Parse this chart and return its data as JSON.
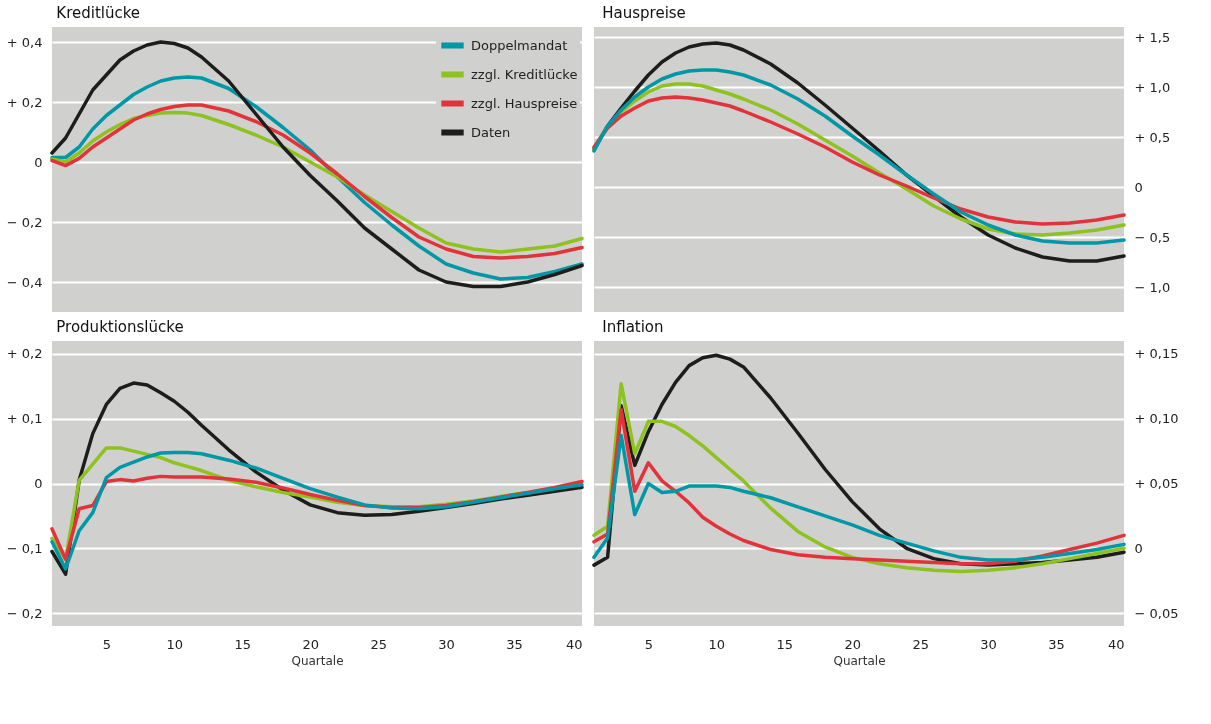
{
  "chart_data": [
    {
      "type": "line",
      "title": "Kreditlücke",
      "legend": "top right",
      "grid": "y",
      "tick_labels": "y",
      "x": [
        1,
        2,
        3,
        4,
        5,
        6,
        7,
        8,
        9,
        10,
        11,
        12,
        14,
        16,
        18,
        20,
        22,
        24,
        26,
        28,
        30,
        32,
        34,
        36,
        38,
        40
      ],
      "xlim": [
        1,
        40
      ],
      "ylim": [
        -0.5,
        0.45
      ],
      "yticks": [
        {
          "value": 0.4,
          "label": "+ 0,4"
        },
        {
          "value": 0.2,
          "label": "+ 0,2"
        },
        0,
        {
          "value": -0.2,
          "label": "− 0,2"
        },
        {
          "value": -0.4,
          "label": "− 0,4"
        }
      ],
      "series": [
        {
          "name": "Doppelmandat",
          "color": "#0097a7",
          "values": [
            0.015,
            0.015,
            0.05,
            0.11,
            0.155,
            0.19,
            0.225,
            0.25,
            0.27,
            0.28,
            0.283,
            0.28,
            0.245,
            0.185,
            0.115,
            0.04,
            -0.05,
            -0.135,
            -0.21,
            -0.28,
            -0.34,
            -0.37,
            -0.39,
            -0.385,
            -0.365,
            -0.34
          ]
        },
        {
          "name": "zzgl. Kreditlücke",
          "color": "#8dc21f",
          "values": [
            0.01,
            0,
            0.03,
            0.07,
            0.1,
            0.125,
            0.145,
            0.155,
            0.163,
            0.165,
            0.163,
            0.155,
            0.125,
            0.09,
            0.05,
            0,
            -0.05,
            -0.11,
            -0.165,
            -0.22,
            -0.27,
            -0.29,
            -0.3,
            -0.29,
            -0.28,
            -0.255
          ]
        },
        {
          "name": "zzgl. Hauspreise",
          "color": "#e2323a",
          "values": [
            0.005,
            -0.012,
            0.012,
            0.05,
            0.08,
            0.11,
            0.14,
            0.16,
            0.175,
            0.185,
            0.19,
            0.19,
            0.17,
            0.135,
            0.09,
            0.03,
            -0.04,
            -0.115,
            -0.185,
            -0.25,
            -0.29,
            -0.315,
            -0.32,
            -0.315,
            -0.305,
            -0.285
          ]
        },
        {
          "name": "Daten",
          "color": "#1d1d1b",
          "values": [
            0.03,
            0.08,
            0.16,
            0.24,
            0.29,
            0.34,
            0.37,
            0.39,
            0.4,
            0.395,
            0.38,
            0.35,
            0.27,
            0.16,
            0.05,
            -0.045,
            -0.13,
            -0.22,
            -0.29,
            -0.36,
            -0.4,
            -0.415,
            -0.415,
            -0.4,
            -0.375,
            -0.345
          ]
        }
      ]
    },
    {
      "type": "line",
      "title": "Hauspreise",
      "grid": "y",
      "tick_labels": "y",
      "x": [
        1,
        2,
        3,
        4,
        5,
        6,
        7,
        8,
        9,
        10,
        11,
        12,
        14,
        16,
        18,
        20,
        22,
        24,
        26,
        28,
        30,
        32,
        34,
        36,
        38,
        40
      ],
      "xlim": [
        1,
        40
      ],
      "y2lim": [
        -1.25,
        1.6
      ],
      "y2ticks": [
        {
          "value": 1.5,
          "label": "+ 1,5"
        },
        {
          "value": 1.0,
          "label": "+ 1,0"
        },
        {
          "value": 0.5,
          "label": "+ 0,5"
        },
        0,
        {
          "value": -0.5,
          "label": "− 0,5"
        },
        {
          "value": -1.0,
          "label": "− 1,0"
        }
      ],
      "series": [
        {
          "color": "#1d1d1b",
          "axis": "y2",
          "values": [
            0.38,
            0.61,
            0.79,
            0.96,
            1.12,
            1.25,
            1.34,
            1.4,
            1.43,
            1.44,
            1.42,
            1.37,
            1.23,
            1.04,
            0.82,
            0.59,
            0.36,
            0.12,
            -0.09,
            -0.3,
            -0.48,
            -0.61,
            -0.7,
            -0.74,
            -0.74,
            -0.69
          ]
        },
        {
          "color": "#8dc21f",
          "axis": "y2",
          "values": [
            0.38,
            0.61,
            0.75,
            0.86,
            0.95,
            1.01,
            1.03,
            1.03,
            1.01,
            0.97,
            0.93,
            0.88,
            0.77,
            0.63,
            0.47,
            0.31,
            0.14,
            -0.02,
            -0.19,
            -0.32,
            -0.42,
            -0.47,
            -0.48,
            -0.46,
            -0.43,
            -0.38
          ]
        },
        {
          "color": "#e2323a",
          "axis": "y2",
          "values": [
            0.4,
            0.59,
            0.71,
            0.79,
            0.86,
            0.89,
            0.9,
            0.89,
            0.87,
            0.84,
            0.81,
            0.76,
            0.65,
            0.53,
            0.4,
            0.25,
            0.12,
            0.01,
            -0.11,
            -0.22,
            -0.3,
            -0.35,
            -0.37,
            -0.36,
            -0.33,
            -0.28
          ]
        },
        {
          "color": "#0097a7",
          "axis": "y2",
          "values": [
            0.36,
            0.61,
            0.77,
            0.9,
            1.0,
            1.08,
            1.13,
            1.16,
            1.17,
            1.17,
            1.15,
            1.12,
            1.02,
            0.88,
            0.71,
            0.51,
            0.32,
            0.12,
            -0.07,
            -0.25,
            -0.38,
            -0.48,
            -0.54,
            -0.56,
            -0.56,
            -0.53
          ]
        }
      ]
    },
    {
      "type": "line",
      "title": "Produktionslücke",
      "grid": "y",
      "xlabel": "Quartale",
      "x": [
        1,
        2,
        3,
        4,
        5,
        6,
        7,
        8,
        9,
        10,
        11,
        12,
        14,
        16,
        18,
        20,
        22,
        24,
        26,
        28,
        30,
        32,
        34,
        36,
        38,
        40
      ],
      "xlim": [
        1,
        40
      ],
      "xticks": [
        5,
        10,
        15,
        20,
        25,
        30,
        35,
        40
      ],
      "ylim": [
        -0.22,
        0.22
      ],
      "yticks": [
        {
          "value": 0.2,
          "label": "+ 0,2"
        },
        {
          "value": 0.1,
          "label": "+ 0,1"
        },
        0,
        {
          "value": -0.1,
          "label": "− 0,1"
        },
        {
          "value": -0.2,
          "label": "− 0,2"
        }
      ],
      "series": [
        {
          "color": "#1d1d1b",
          "values": [
            -0.105,
            -0.14,
            0.005,
            0.077,
            0.122,
            0.147,
            0.155,
            0.152,
            0.14,
            0.127,
            0.11,
            0.09,
            0.052,
            0.018,
            -0.01,
            -0.033,
            -0.045,
            -0.049,
            -0.048,
            -0.043,
            -0.037,
            -0.031,
            -0.024,
            -0.018,
            -0.012,
            -0.006
          ]
        },
        {
          "color": "#8dc21f",
          "values": [
            -0.085,
            -0.117,
            0.005,
            0.03,
            0.055,
            0.055,
            0.05,
            0.045,
            0.04,
            0.032,
            0.026,
            0.02,
            0.005,
            -0.005,
            -0.014,
            -0.021,
            -0.029,
            -0.034,
            -0.036,
            -0.036,
            -0.032,
            -0.027,
            -0.02,
            -0.014,
            null,
            null
          ]
        },
        {
          "color": "#e2323a",
          "values": [
            -0.07,
            -0.117,
            -0.039,
            -0.034,
            0.003,
            0.006,
            0.004,
            0.008,
            0.011,
            0.01,
            0.01,
            0.01,
            0.007,
            0.002,
            -0.007,
            -0.017,
            -0.026,
            -0.034,
            -0.037,
            -0.037,
            -0.034,
            -0.028,
            -0.021,
            -0.014,
            -0.006,
            0.003
          ]
        },
        {
          "color": "#0097a7",
          "values": [
            -0.09,
            -0.132,
            -0.073,
            -0.045,
            0.009,
            0.025,
            0.033,
            0.041,
            0.047,
            0.048,
            0.048,
            0.046,
            0.036,
            0.024,
            0.008,
            -0.008,
            -0.021,
            -0.033,
            -0.038,
            -0.039,
            -0.036,
            -0.029,
            -0.022,
            -0.015,
            -0.008,
            -0.002
          ]
        }
      ]
    },
    {
      "type": "line",
      "title": "Inflation",
      "grid": "y",
      "xlabel": "Quartale",
      "x": [
        1,
        2,
        3,
        4,
        5,
        6,
        7,
        8,
        9,
        10,
        11,
        12,
        14,
        16,
        18,
        20,
        22,
        24,
        26,
        28,
        30,
        32,
        34,
        36,
        38,
        40
      ],
      "xlim": [
        1,
        40
      ],
      "xticks": [
        5,
        10,
        15,
        20,
        25,
        30,
        35,
        40
      ],
      "y2lim": [
        -0.06,
        0.16
      ],
      "y2ticks": [
        {
          "value": 0.15,
          "label": "+ 0,15"
        },
        {
          "value": 0.1,
          "label": "+ 0,10"
        },
        {
          "value": 0.05,
          "label": "+ 0,05"
        },
        0,
        {
          "value": -0.05,
          "label": "− 0,05"
        }
      ],
      "series": [
        {
          "color": "#1d1d1b",
          "axis": "y2",
          "values": [
            -0.013,
            -0.007,
            0.11,
            0.064,
            0.09,
            0.111,
            0.128,
            0.141,
            0.147,
            0.149,
            0.146,
            0.14,
            0.116,
            0.089,
            0.061,
            0.036,
            0.015,
            0,
            -0.008,
            -0.012,
            -0.013,
            -0.012,
            -0.011,
            -0.009,
            -0.007,
            -0.003
          ]
        },
        {
          "color": "#8dc21f",
          "axis": "y2",
          "values": [
            0.01,
            0.017,
            0.127,
            0.073,
            0.098,
            0.098,
            0.094,
            0.087,
            0.079,
            0.07,
            0.061,
            0.052,
            0.031,
            0.013,
            0.001,
            -0.007,
            -0.012,
            -0.015,
            -0.017,
            -0.018,
            -0.017,
            -0.015,
            -0.012,
            -0.008,
            -0.004,
            0
          ]
        },
        {
          "color": "#e2323a",
          "axis": "y2",
          "values": [
            0.005,
            0.011,
            0.107,
            0.044,
            0.066,
            0.052,
            0.044,
            0.035,
            0.024,
            0.017,
            0.011,
            0.006,
            -0.001,
            -0.005,
            -0.007,
            -0.008,
            -0.009,
            -0.01,
            -0.011,
            -0.012,
            -0.012,
            -0.01,
            -0.006,
            -0.001,
            0.004,
            0.01
          ]
        },
        {
          "color": "#0097a7",
          "axis": "y2",
          "values": [
            -0.007,
            0.008,
            0.087,
            0.026,
            0.05,
            0.043,
            0.044,
            0.048,
            0.048,
            0.048,
            0.047,
            0.044,
            0.039,
            0.032,
            0.025,
            0.018,
            0.01,
            0.004,
            -0.002,
            -0.007,
            -0.009,
            -0.009,
            -0.007,
            -0.004,
            -0.001,
            0.003
          ]
        }
      ]
    }
  ]
}
